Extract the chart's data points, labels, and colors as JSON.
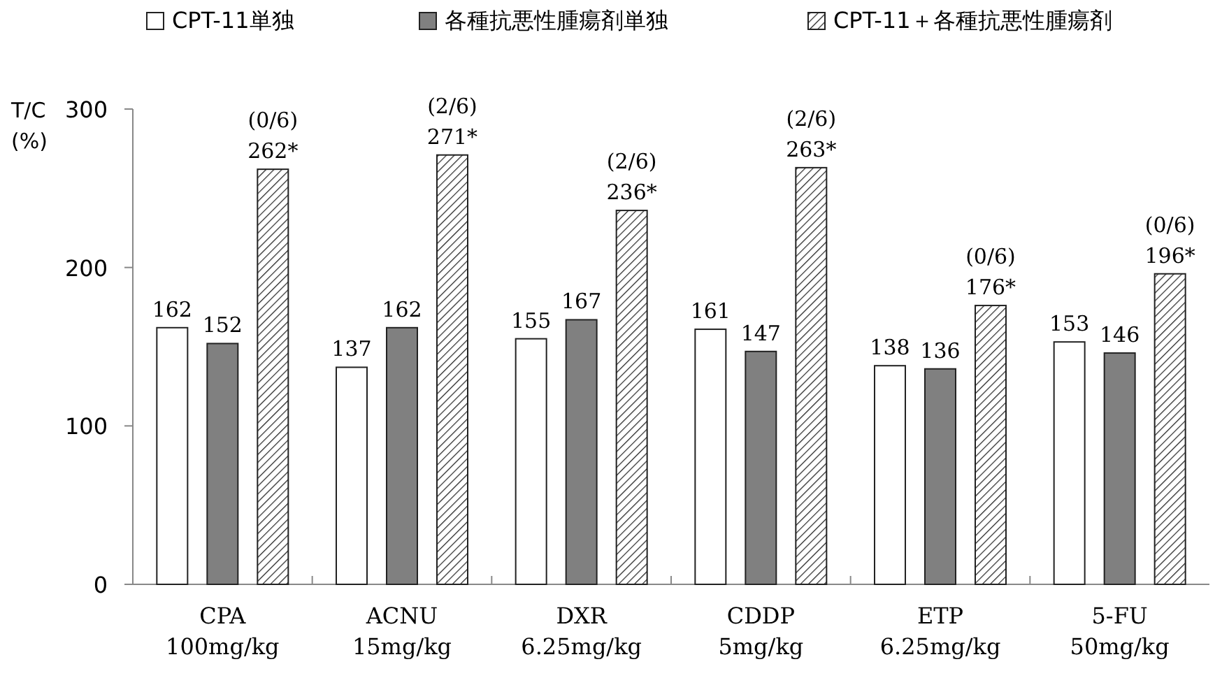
{
  "chart_data": {
    "type": "bar",
    "ylabel": "T/C (%)",
    "categories": [
      "CPA 100mg/kg",
      "ACNU 15mg/kg",
      "DXR 6.25mg/kg",
      "CDDP 5mg/kg",
      "ETP 6.25mg/kg",
      "5-FU 50mg/kg"
    ],
    "series": [
      {
        "name": "CPT-11単独",
        "color": "#ffffff",
        "values": [
          162,
          137,
          155,
          161,
          138,
          153
        ],
        "value_labels": [
          "162",
          "137",
          "155",
          "161",
          "138",
          "153"
        ]
      },
      {
        "name": "各種抗悪性腫瘍剤単独",
        "color": "#808080",
        "values": [
          152,
          162,
          167,
          147,
          136,
          146
        ],
        "value_labels": [
          "152",
          "162",
          "167",
          "147",
          "136",
          "146"
        ]
      },
      {
        "name": "CPT-11＋各種抗悪性腫瘍剤",
        "color": "#222222",
        "values": [
          262,
          271,
          236,
          263,
          176,
          196
        ],
        "value_labels": [
          "(0/6) 262*",
          "(2/6) 271*",
          "(2/6) 236*",
          "(2/6) 263*",
          "(0/6) 176*",
          "(0/6) 196*"
        ]
      }
    ],
    "ylim": [
      0,
      300
    ],
    "yticks": [
      0,
      100,
      200,
      300
    ],
    "grid": false,
    "legend": "top"
  }
}
